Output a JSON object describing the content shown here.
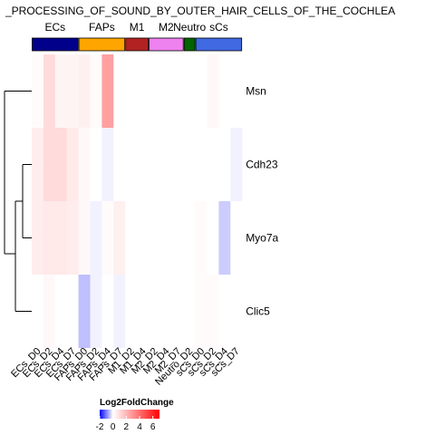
{
  "chart_data": {
    "type": "heatmap",
    "title": "_PROCESSING_OF_SOUND_BY_OUTER_HAIR_CELLS_OF_THE_COCHLEA",
    "rows": [
      "Msn",
      "Cdh23",
      "Myo7a",
      "Clic5"
    ],
    "columns": [
      "ECs_D0",
      "ECs_D2",
      "ECs_D4",
      "ECs_D7",
      "FAPs_D0",
      "FAPs_D2",
      "FAPs_D4",
      "FAPs_D7",
      "M1_D2",
      "M1_D4",
      "M2_D2",
      "M2_D4",
      "M2_D7",
      "Neutro_D2",
      "sCs_D0",
      "sCs_D2",
      "sCs_D4",
      "sCs_D7"
    ],
    "column_groups": [
      {
        "name": "ECs",
        "label": "ECs",
        "start": 0,
        "end": 3,
        "color": "#00008b"
      },
      {
        "name": "FAPs",
        "label": "FAPs",
        "start": 4,
        "end": 7,
        "color": "#ffa500"
      },
      {
        "name": "M1",
        "label": "M1",
        "start": 8,
        "end": 9,
        "color": "#b22222"
      },
      {
        "name": "M2",
        "label": "M2",
        "start": 10,
        "end": 12,
        "color": "#ee82ee"
      },
      {
        "name": "Neutro",
        "label": "Neutro",
        "start": 13,
        "end": 13,
        "color": "#006400"
      },
      {
        "name": "sCs",
        "label": "sCs",
        "start": 14,
        "end": 17,
        "color": "#4169e1"
      }
    ],
    "values": [
      [
        0.1,
        1.0,
        0.3,
        0.3,
        0.4,
        0.1,
        2.6,
        0.0,
        0.0,
        0.0,
        0.0,
        0.0,
        0.0,
        0.0,
        0.0,
        0.2,
        0.0,
        0.0
      ],
      [
        0.5,
        1.0,
        1.0,
        0.6,
        0.2,
        0.0,
        -0.1,
        0.0,
        0.0,
        0.0,
        0.0,
        0.0,
        0.0,
        0.0,
        0.0,
        0.0,
        0.0,
        -0.1
      ],
      [
        0.5,
        0.6,
        0.6,
        0.5,
        0.2,
        -0.1,
        0.1,
        0.4,
        0.0,
        0.0,
        0.0,
        0.0,
        0.0,
        0.0,
        0.1,
        0.0,
        -0.4,
        0.0
      ],
      [
        0.0,
        0.2,
        0.0,
        0.0,
        -0.5,
        -0.1,
        0.0,
        -0.1,
        0.0,
        0.0,
        0.0,
        0.0,
        0.0,
        0.0,
        0.1,
        0.1,
        0.0,
        0.0
      ]
    ],
    "legend": {
      "title": "Log2FoldChange",
      "ticks": [
        -2,
        0,
        2,
        4,
        6
      ],
      "min": -2,
      "max": 7
    },
    "dendrogram": "row"
  }
}
